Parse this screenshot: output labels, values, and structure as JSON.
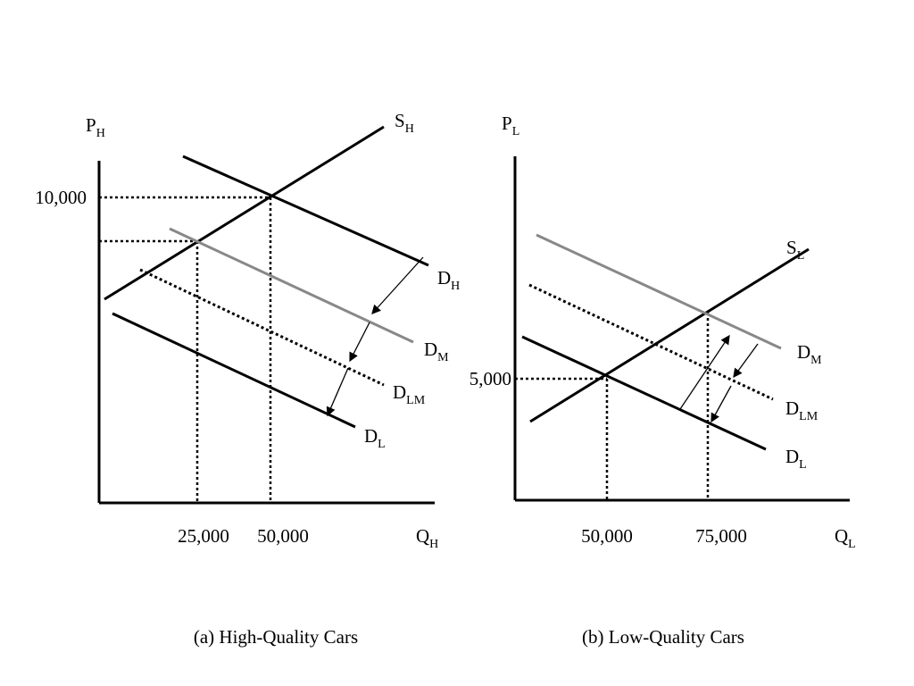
{
  "panels": [
    {
      "caption": "(a) High-Quality Cars",
      "y_axis": {
        "main": "P",
        "sub": "H"
      },
      "x_axis": {
        "main": "Q",
        "sub": "H"
      },
      "y_ticks": [
        "10,000"
      ],
      "x_ticks": [
        "25,000",
        "50,000"
      ],
      "curves": [
        {
          "main": "S",
          "sub": "H"
        },
        {
          "main": "D",
          "sub": "H"
        },
        {
          "main": "D",
          "sub": "M"
        },
        {
          "main": "D",
          "sub": "LM"
        },
        {
          "main": "D",
          "sub": "L"
        }
      ]
    },
    {
      "caption": "(b) Low-Quality Cars",
      "y_axis": {
        "main": "P",
        "sub": "L"
      },
      "x_axis": {
        "main": "Q",
        "sub": "L"
      },
      "y_ticks": [
        "5,000"
      ],
      "x_ticks": [
        "50,000",
        "75,000"
      ],
      "curves": [
        {
          "main": "S",
          "sub": "L"
        },
        {
          "main": "D",
          "sub": "M"
        },
        {
          "main": "D",
          "sub": "LM"
        },
        {
          "main": "D",
          "sub": "L"
        }
      ]
    }
  ]
}
